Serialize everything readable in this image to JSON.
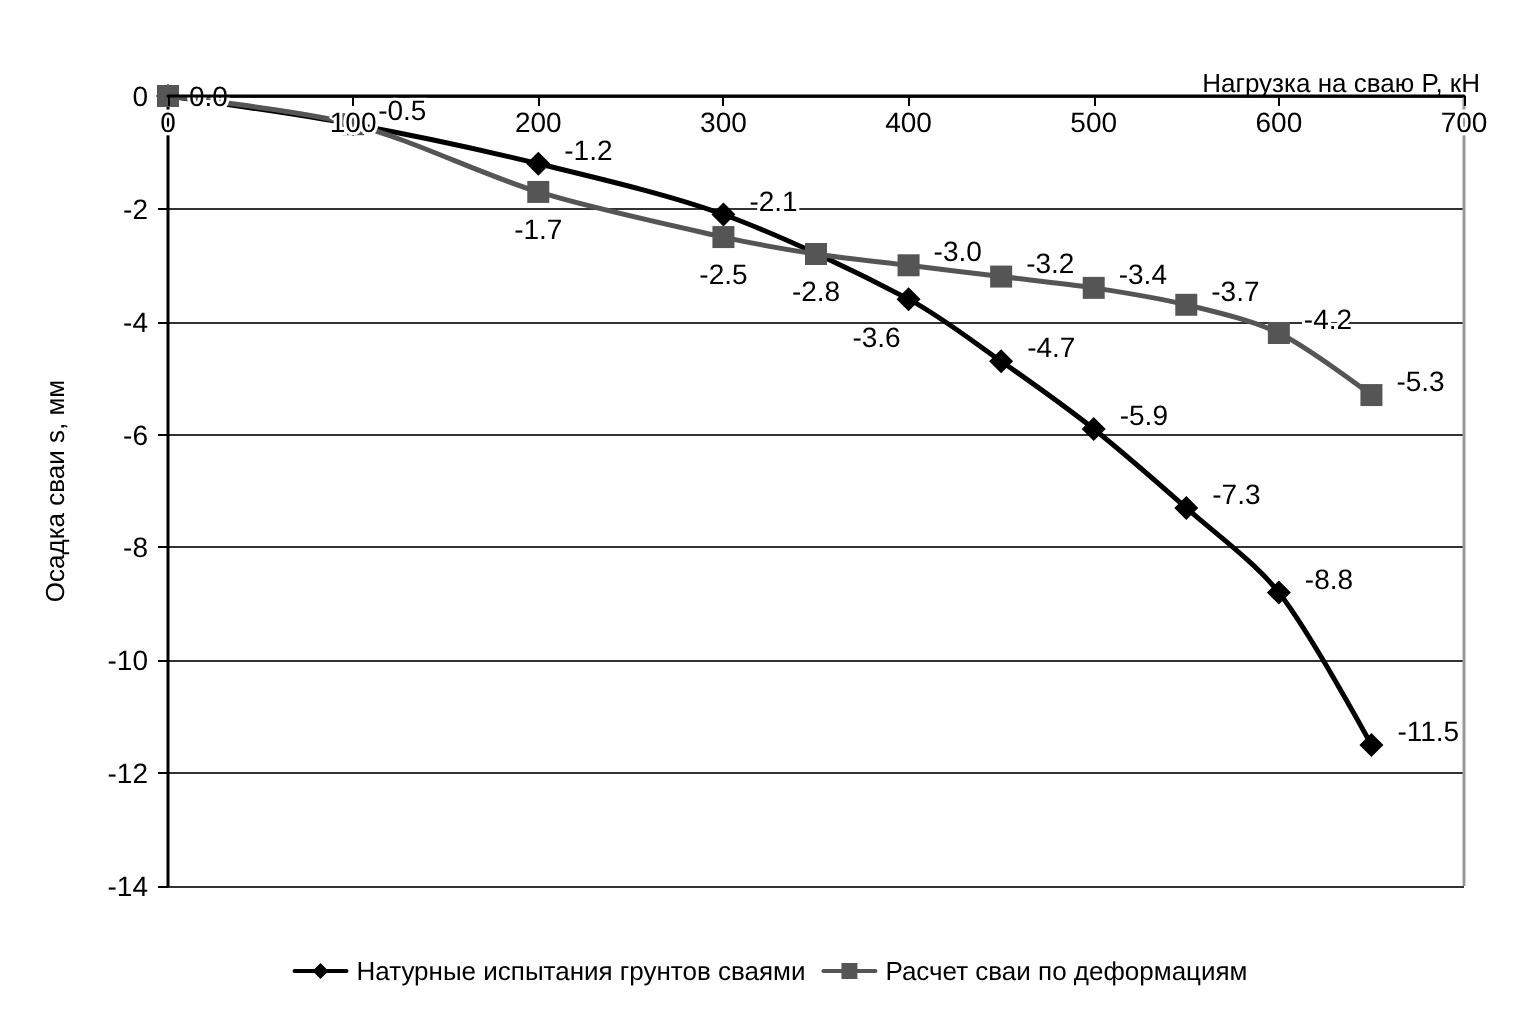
{
  "chart_data": {
    "type": "line",
    "xlabel": "Нагрузка на сваю P, кН",
    "ylabel": "Осадка сваи s, мм",
    "xlim": [
      0,
      700
    ],
    "xticks": [
      0,
      100,
      200,
      300,
      400,
      500,
      600,
      700
    ],
    "ylim": [
      -14,
      0
    ],
    "yticks": [
      -14,
      -12,
      -10,
      -8,
      -6,
      -4,
      -2,
      0
    ],
    "grid": "y",
    "legend": "bottom",
    "line_style": "solid",
    "series": [
      {
        "name": "Натурные испытания грунтов сваями",
        "color": "#000000",
        "marker": "diamond",
        "x": [
          0,
          100,
          200,
          300,
          400,
          450,
          500,
          550,
          600,
          650
        ],
        "values": [
          0,
          -0.5,
          -1.2,
          -2.1,
          -3.6,
          -4.7,
          -5.9,
          -7.3,
          -8.8,
          -11.5
        ],
        "value_labels": [
          null,
          null,
          "-1.2",
          "-2.1",
          "-3.6",
          "-4.7",
          "-5.9",
          "-7.3",
          "-8.8",
          "-11.5"
        ]
      },
      {
        "name": "Расчет сваи по деформациям",
        "color": "#555555",
        "marker": "square",
        "x": [
          0,
          100,
          200,
          300,
          350,
          400,
          450,
          500,
          550,
          600,
          650
        ],
        "values": [
          0,
          -0.5,
          -1.7,
          -2.5,
          -2.8,
          -3.0,
          -3.2,
          -3.4,
          -3.7,
          -4.2,
          -5.3
        ],
        "value_labels": [
          "0.0",
          "-0.5",
          "-1.7",
          "-2.5",
          "-2.8",
          "-3.0",
          "-3.2",
          "-3.4",
          "-3.7",
          "-4.2",
          "-5.3"
        ]
      }
    ]
  }
}
